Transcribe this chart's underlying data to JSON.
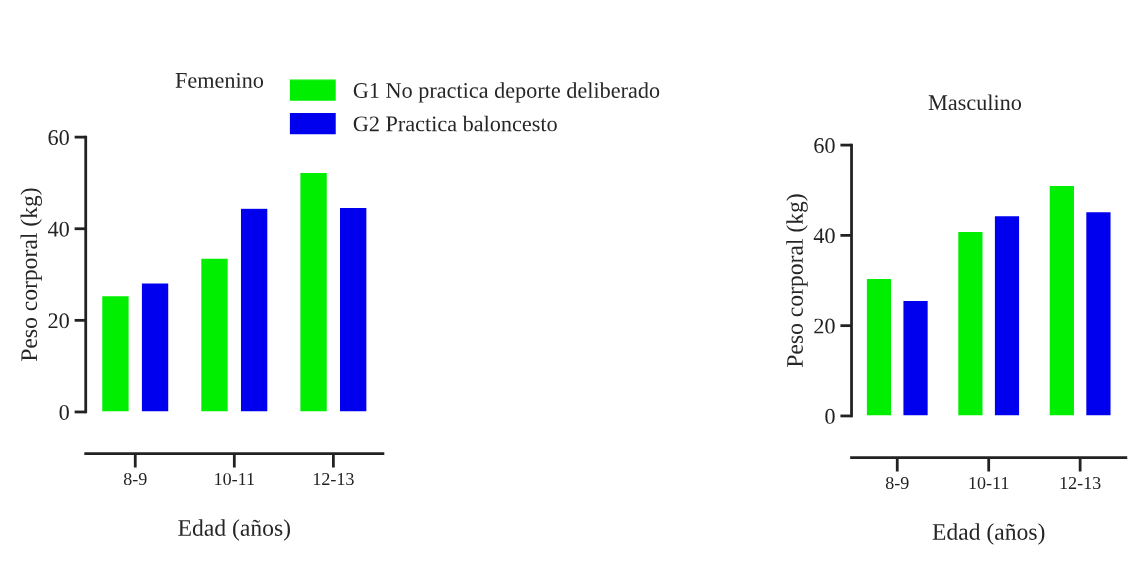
{
  "chart_data": [
    {
      "type": "bar",
      "title": "Femenino",
      "xlabel": "Edad (años)",
      "ylabel": "Peso corporal (kg)",
      "categories": [
        "8-9",
        "10-11",
        "12-13"
      ],
      "ylim": [
        0,
        60
      ],
      "yticks": [
        0,
        20,
        40,
        60
      ],
      "grid": false,
      "legend": "top right",
      "series": [
        {
          "name": "G1 No practica deporte deliberado",
          "color": "#00ee00",
          "values": [
            25.4,
            33.6,
            52.3
          ]
        },
        {
          "name": "G2 Practica baloncesto",
          "color": "#0000ee",
          "values": [
            28.2,
            44.5,
            44.7
          ]
        }
      ]
    },
    {
      "type": "bar",
      "title": "Masculino",
      "xlabel": "Edad (años)",
      "ylabel": "Peso corporal (kg)",
      "categories": [
        "8-9",
        "10-11",
        "12-13"
      ],
      "ylim": [
        0,
        60
      ],
      "yticks": [
        0,
        20,
        40,
        60
      ],
      "grid": false,
      "series": [
        {
          "color": "#00ee00",
          "values": [
            30.5,
            40.9,
            51.1
          ]
        },
        {
          "color": "#0000ee",
          "values": [
            25.6,
            44.4,
            45.3
          ]
        }
      ]
    }
  ]
}
